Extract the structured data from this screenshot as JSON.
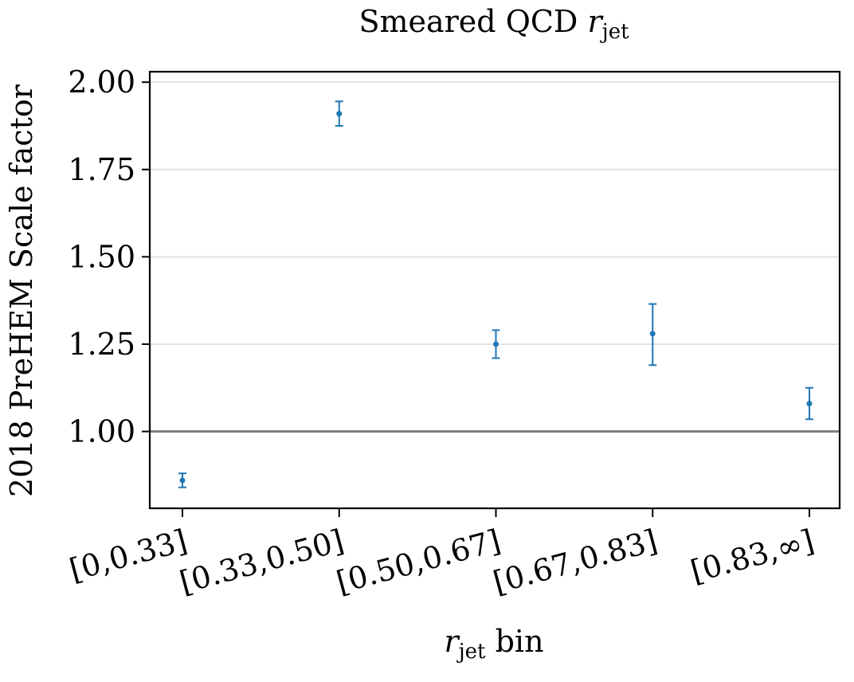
{
  "chart_data": {
    "type": "scatter",
    "title": "Smeared QCD r_jet",
    "title_main": "Smeared QCD ",
    "title_var": "r",
    "title_sub": "jet",
    "ylabel": "2018 PreHEM Scale factor",
    "xlabel_var": "r",
    "xlabel_sub": "jet",
    "xlabel_suffix": " bin",
    "categories": [
      "[0,0.33]",
      "[0.33,0.50]",
      "[0.50,0.67]",
      "[0.67,0.83]",
      "[0.83,∞]"
    ],
    "series": [
      {
        "values": [
          0.86,
          1.91,
          1.25,
          1.28,
          1.08
        ],
        "err_low": [
          0.02,
          0.035,
          0.04,
          0.09,
          0.045
        ],
        "err_high": [
          0.02,
          0.035,
          0.04,
          0.085,
          0.045
        ]
      }
    ],
    "ylim": [
      0.78,
      2.03
    ],
    "yticks": [
      "1.00",
      "1.25",
      "1.50",
      "1.75",
      "2.00"
    ],
    "reference_line": 1.0,
    "grid": "horizontal",
    "colors": {
      "marker": "#1f77b4",
      "grid": "#e2e2e2",
      "reference": "#808080",
      "axis": "#000000"
    }
  }
}
